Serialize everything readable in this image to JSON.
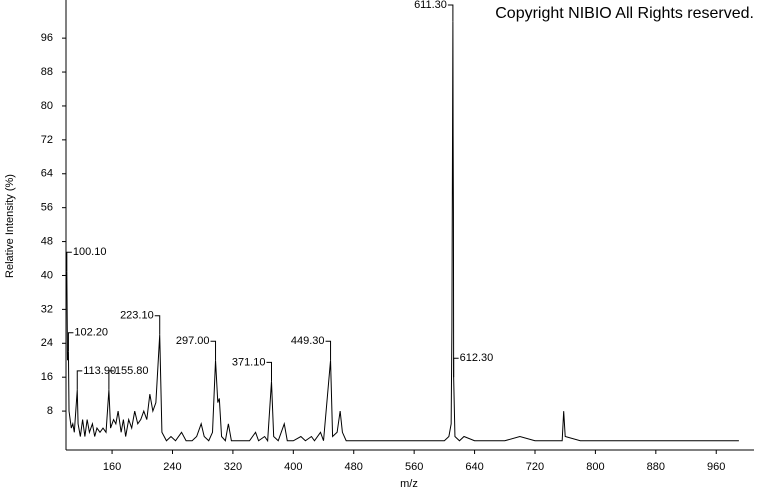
{
  "chart_data": {
    "type": "line",
    "title": "Copyright NIBIO All Rights reserved.",
    "x_label": "m/z",
    "y_label": "Relative Intensity (%)",
    "color": "#000000",
    "xlim": [
      99,
      1010
    ],
    "ylim": [
      0,
      105
    ],
    "xticks": [
      160,
      240,
      320,
      400,
      480,
      560,
      640,
      720,
      800,
      880,
      960
    ],
    "yticks": [
      8,
      16,
      24,
      32,
      40,
      48,
      56,
      64,
      72,
      80,
      88,
      96
    ],
    "x": [
      100.1,
      101,
      102.2,
      103,
      106,
      108,
      110,
      113.9,
      115,
      118,
      121,
      124,
      127,
      130,
      134,
      137,
      140,
      144,
      148,
      152,
      155.8,
      158,
      162,
      165,
      168,
      172,
      175,
      178,
      182,
      186,
      190,
      194,
      198,
      202,
      206,
      210,
      214,
      218,
      223.1,
      226,
      232,
      238,
      244,
      252,
      258,
      266,
      272,
      278,
      282,
      288,
      293,
      297,
      300,
      302,
      305,
      310,
      314,
      318,
      326,
      334,
      342,
      350,
      354,
      362,
      366,
      371.1,
      374,
      380,
      388,
      392,
      400,
      410,
      416,
      424,
      428,
      436,
      440,
      449.3,
      452,
      458,
      462,
      465,
      470,
      480,
      500,
      520,
      540,
      560,
      580,
      600,
      606,
      609,
      610,
      611.3,
      611.6,
      612,
      612.3,
      614,
      620,
      626,
      640,
      660,
      680,
      700,
      720,
      740,
      756,
      758,
      760,
      780,
      800,
      820,
      840,
      880,
      920,
      960,
      990
    ],
    "values": [
      41,
      20,
      22,
      8,
      4,
      5,
      3,
      13,
      5,
      2,
      6,
      2,
      6,
      3,
      5,
      2,
      4,
      3,
      4,
      3,
      13,
      4,
      6,
      5,
      8,
      3,
      6,
      2,
      6,
      4,
      8,
      5,
      6,
      8,
      6,
      12,
      8,
      10,
      26,
      3,
      1,
      2,
      1,
      3,
      1,
      1,
      2,
      5,
      2,
      1,
      3,
      20,
      10,
      11,
      2,
      1,
      5,
      1,
      1,
      1,
      1,
      3,
      1,
      2,
      1,
      15,
      2,
      1,
      5,
      1,
      1,
      2,
      1,
      2,
      1,
      3,
      1,
      20,
      2,
      3,
      8,
      3,
      1,
      1,
      1,
      1,
      1,
      1,
      1,
      1,
      2,
      5,
      28,
      100,
      73,
      55,
      16,
      2,
      1,
      2,
      1,
      1,
      1,
      2,
      1,
      1,
      1,
      8,
      2,
      1,
      1,
      1,
      1,
      1,
      1,
      1,
      1
    ],
    "annotations": [
      {
        "x": 100.1,
        "y": 41,
        "label": "100.10",
        "side": "right"
      },
      {
        "x": 102.2,
        "y": 22,
        "label": "102.20",
        "side": "right"
      },
      {
        "x": 113.9,
        "y": 13,
        "label": "113.90",
        "side": "right"
      },
      {
        "x": 155.8,
        "y": 13,
        "label": "155.80",
        "side": "right"
      },
      {
        "x": 223.1,
        "y": 26,
        "label": "223.10",
        "side": "left"
      },
      {
        "x": 297,
        "y": 20,
        "label": "297.00",
        "side": "left"
      },
      {
        "x": 371.1,
        "y": 15,
        "label": "371.10",
        "side": "left"
      },
      {
        "x": 449.3,
        "y": 20,
        "label": "449.30",
        "side": "left"
      },
      {
        "x": 611.3,
        "y": 100,
        "label": "611.30",
        "side": "left"
      },
      {
        "x": 612.3,
        "y": 16,
        "label": "612.30",
        "side": "right"
      }
    ]
  }
}
